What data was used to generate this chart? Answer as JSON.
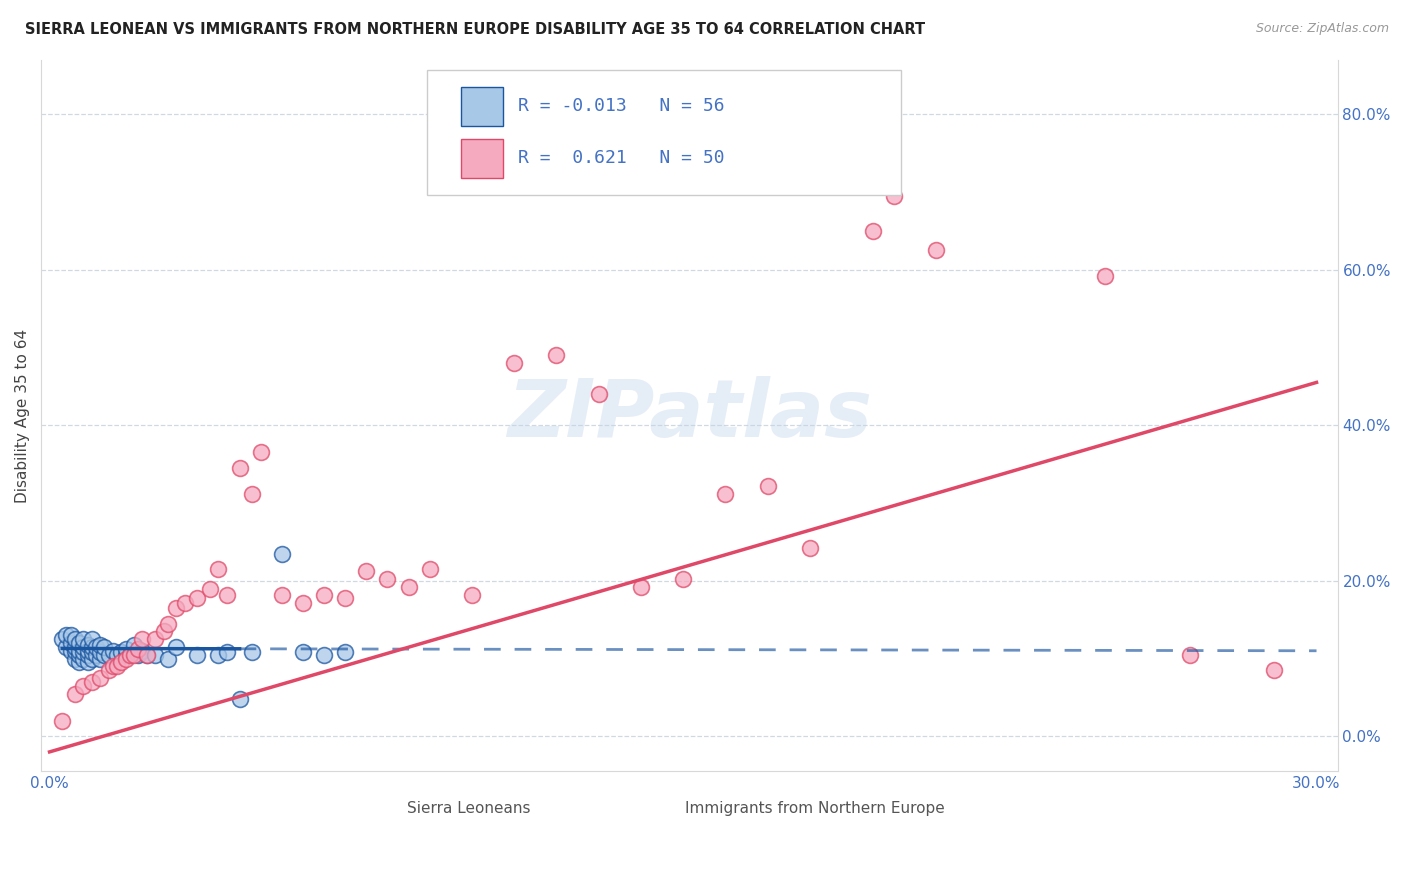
{
  "title": "SIERRA LEONEAN VS IMMIGRANTS FROM NORTHERN EUROPE DISABILITY AGE 35 TO 64 CORRELATION CHART",
  "source": "Source: ZipAtlas.com",
  "ylabel": "Disability Age 35 to 64",
  "xlim": [
    -0.002,
    0.305
  ],
  "ylim": [
    -0.045,
    0.87
  ],
  "ytick_vals": [
    0.0,
    0.2,
    0.4,
    0.6,
    0.8
  ],
  "xtick_vals": [
    0.0,
    0.05,
    0.1,
    0.15,
    0.2,
    0.25,
    0.3
  ],
  "xtick_labels": [
    "0.0%",
    "",
    "",
    "",
    "",
    "",
    "30.0%"
  ],
  "legend_label1": "Sierra Leoneans",
  "legend_label2": "Immigrants from Northern Europe",
  "R1": "-0.013",
  "N1": "56",
  "R2": "0.621",
  "N2": "50",
  "color1": "#a8c8e8",
  "color2": "#f5aac0",
  "line_color1": "#1a55a0",
  "line_color2": "#e04868",
  "watermark": "ZIPatlas",
  "bg": "#ffffff",
  "grid_color": "#d0d8e0",
  "sl_x": [
    0.003,
    0.004,
    0.004,
    0.005,
    0.005,
    0.005,
    0.006,
    0.006,
    0.006,
    0.006,
    0.007,
    0.007,
    0.007,
    0.007,
    0.008,
    0.008,
    0.008,
    0.008,
    0.009,
    0.009,
    0.009,
    0.009,
    0.01,
    0.01,
    0.01,
    0.01,
    0.011,
    0.011,
    0.012,
    0.012,
    0.012,
    0.013,
    0.013,
    0.014,
    0.015,
    0.016,
    0.017,
    0.018,
    0.018,
    0.019,
    0.02,
    0.021,
    0.022,
    0.023,
    0.025,
    0.028,
    0.03,
    0.035,
    0.04,
    0.042,
    0.045,
    0.048,
    0.055,
    0.06,
    0.065,
    0.07
  ],
  "sl_y": [
    0.125,
    0.115,
    0.13,
    0.11,
    0.12,
    0.13,
    0.1,
    0.11,
    0.115,
    0.125,
    0.095,
    0.105,
    0.11,
    0.12,
    0.1,
    0.108,
    0.115,
    0.125,
    0.095,
    0.105,
    0.11,
    0.118,
    0.1,
    0.108,
    0.115,
    0.125,
    0.105,
    0.115,
    0.1,
    0.108,
    0.118,
    0.105,
    0.115,
    0.105,
    0.11,
    0.105,
    0.108,
    0.105,
    0.112,
    0.105,
    0.118,
    0.105,
    0.11,
    0.105,
    0.105,
    0.1,
    0.115,
    0.105,
    0.105,
    0.108,
    0.048,
    0.108,
    0.235,
    0.108,
    0.105,
    0.108
  ],
  "ne_x": [
    0.003,
    0.006,
    0.008,
    0.01,
    0.012,
    0.014,
    0.015,
    0.016,
    0.017,
    0.018,
    0.019,
    0.02,
    0.021,
    0.022,
    0.023,
    0.025,
    0.027,
    0.028,
    0.03,
    0.032,
    0.035,
    0.038,
    0.04,
    0.042,
    0.045,
    0.048,
    0.05,
    0.055,
    0.06,
    0.065,
    0.07,
    0.075,
    0.08,
    0.085,
    0.09,
    0.1,
    0.11,
    0.12,
    0.13,
    0.14,
    0.15,
    0.16,
    0.17,
    0.18,
    0.195,
    0.2,
    0.21,
    0.25,
    0.27,
    0.29
  ],
  "ne_y": [
    0.02,
    0.055,
    0.065,
    0.07,
    0.075,
    0.085,
    0.09,
    0.09,
    0.095,
    0.1,
    0.105,
    0.105,
    0.112,
    0.125,
    0.105,
    0.125,
    0.135,
    0.145,
    0.165,
    0.172,
    0.178,
    0.19,
    0.215,
    0.182,
    0.345,
    0.312,
    0.365,
    0.182,
    0.172,
    0.182,
    0.178,
    0.212,
    0.202,
    0.192,
    0.215,
    0.182,
    0.48,
    0.49,
    0.44,
    0.192,
    0.202,
    0.312,
    0.322,
    0.242,
    0.65,
    0.695,
    0.625,
    0.592,
    0.105,
    0.085
  ]
}
